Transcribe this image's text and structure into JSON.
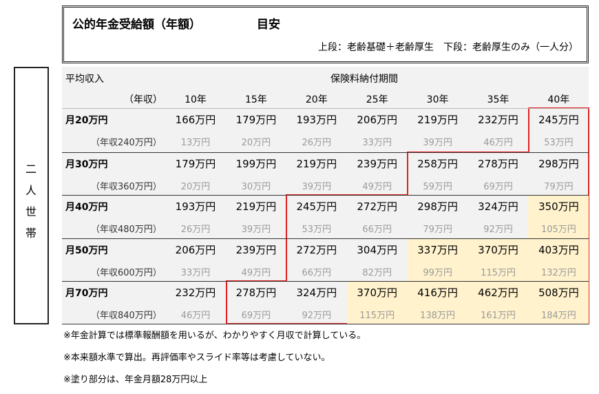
{
  "header": {
    "title": "公的年金受給額（年額）",
    "suffix": "目安",
    "subtitle": "上段：老齢基礎＋老齢厚生　下段：老齢厚生のみ（一人分）"
  },
  "side_label": "二人世帯",
  "table": {
    "income_header": "平均収入",
    "period_header": "保険料納付期間",
    "annual_header": "（年収）",
    "columns": [
      "10年",
      "15年",
      "20年",
      "25年",
      "30年",
      "35年",
      "40年"
    ],
    "rows": [
      {
        "label": "月20万円",
        "sub_label": "（年収240万円）",
        "upper": [
          "166万円",
          "179万円",
          "193万円",
          "206万円",
          "219万円",
          "232万円",
          "245万円"
        ],
        "lower": [
          "13万円",
          "20万円",
          "26万円",
          "33万円",
          "39万円",
          "46万円",
          "53万円"
        ]
      },
      {
        "label": "月30万円",
        "sub_label": "（年収360万円）",
        "upper": [
          "179万円",
          "199万円",
          "219万円",
          "239万円",
          "258万円",
          "278万円",
          "298万円"
        ],
        "lower": [
          "20万円",
          "30万円",
          "39万円",
          "49万円",
          "59万円",
          "69万円",
          "79万円"
        ]
      },
      {
        "label": "月40万円",
        "sub_label": "（年収480万円）",
        "upper": [
          "193万円",
          "219万円",
          "245万円",
          "272万円",
          "298万円",
          "324万円",
          "350万円"
        ],
        "lower": [
          "26万円",
          "39万円",
          "53万円",
          "66万円",
          "79万円",
          "92万円",
          "105万円"
        ]
      },
      {
        "label": "月50万円",
        "sub_label": "（年収600万円）",
        "upper": [
          "206万円",
          "239万円",
          "272万円",
          "304万円",
          "337万円",
          "370万円",
          "403万円"
        ],
        "lower": [
          "33万円",
          "49万円",
          "66万円",
          "82万円",
          "99万円",
          "115万円",
          "132万円"
        ]
      },
      {
        "label": "月70万円",
        "sub_label": "（年収840万円）",
        "upper": [
          "232万円",
          "278万円",
          "324万円",
          "370万円",
          "416万円",
          "462万円",
          "508万円"
        ],
        "lower": [
          "46万円",
          "69万円",
          "92万円",
          "115万円",
          "138万円",
          "161万円",
          "184万円"
        ]
      }
    ]
  },
  "notes": [
    "※年金計算では標準報酬額を用いるが、わかりやすく月収で計算している。",
    "※本来額水準で算出。再評価率やスライド率等は考慮していない。",
    "※塗り部分は、年金月額28万円以上"
  ]
}
